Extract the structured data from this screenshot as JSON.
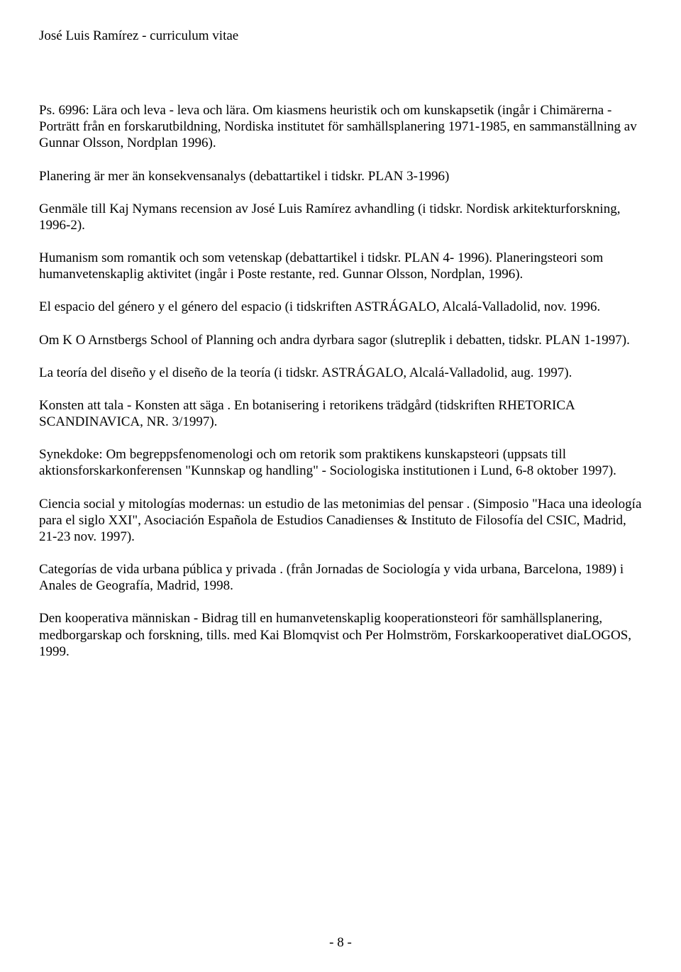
{
  "header": {
    "title": "José Luis Ramírez - curriculum vitae"
  },
  "paragraphs": {
    "p1": "Ps. 6996: Lära och leva - leva och lära. Om kiasmens heuristik och om kunskapsetik (ingår i Chimärerna - Porträtt från en forskarutbildning, Nordiska institutet för samhällsplanering 1971-1985, en sammanställning av Gunnar Olsson, Nordplan 1996).",
    "p2": "Planering är mer än konsekvensanalys (debattartikel i tidskr. PLAN 3-1996)",
    "p3": "Genmäle till Kaj Nymans recension av José Luis Ramírez avhandling (i tidskr. Nordisk arkitekturforskning, 1996-2).",
    "p4": "Humanism som romantik och som vetenskap (debattartikel i tidskr. PLAN 4- 1996). Planeringsteori som humanvetenskaplig aktivitet (ingår i Poste restante, red. Gunnar Olsson, Nordplan, 1996).",
    "p5": "El espacio del género y el género del espacio (i tidskriften ASTRÁGALO, Alcalá-Valladolid, nov. 1996.",
    "p6": "Om K O Arnstbergs School of Planning och andra dyrbara sagor (slutreplik i debatten, tidskr. PLAN 1-1997).",
    "p7": "La teoría del diseño y el diseño de la teoría (i tidskr. ASTRÁGALO, Alcalá-Valladolid, aug. 1997).",
    "p8": "Konsten att tala - Konsten att säga . En botanisering i retorikens trädgård (tidskriften RHETORICA SCANDINAVICA, NR. 3/1997).",
    "p9": "Synekdoke: Om begreppsfenomenologi och om retorik som praktikens kunskapsteori (uppsats till aktionsforskarkonferensen \"Kunnskap og handling\" - Sociologiska institutionen i Lund, 6-8 oktober 1997).",
    "p10": "Ciencia social y mitologías modernas: un estudio de las metonimias del pensar . (Simposio \"Haca una ideología para el siglo XXI\", Asociación Española de Estudios Canadienses & Instituto de Filosofía del CSIC, Madrid, 21-23 nov. 1997).",
    "p11": "Categorías de vida urbana pública y privada . (från Jornadas de Sociología y vida urbana, Barcelona, 1989) i Anales de Geografía, Madrid, 1998.",
    "p12": "Den kooperativa människan - Bidrag till en humanvetenskaplig kooperationsteori för samhällsplanering, medborgarskap och forskning, tills. med Kai Blomqvist och Per Holmström, Forskarkooperativet diaLOGOS, 1999."
  },
  "footer": {
    "pageNumber": "- 8 -"
  }
}
